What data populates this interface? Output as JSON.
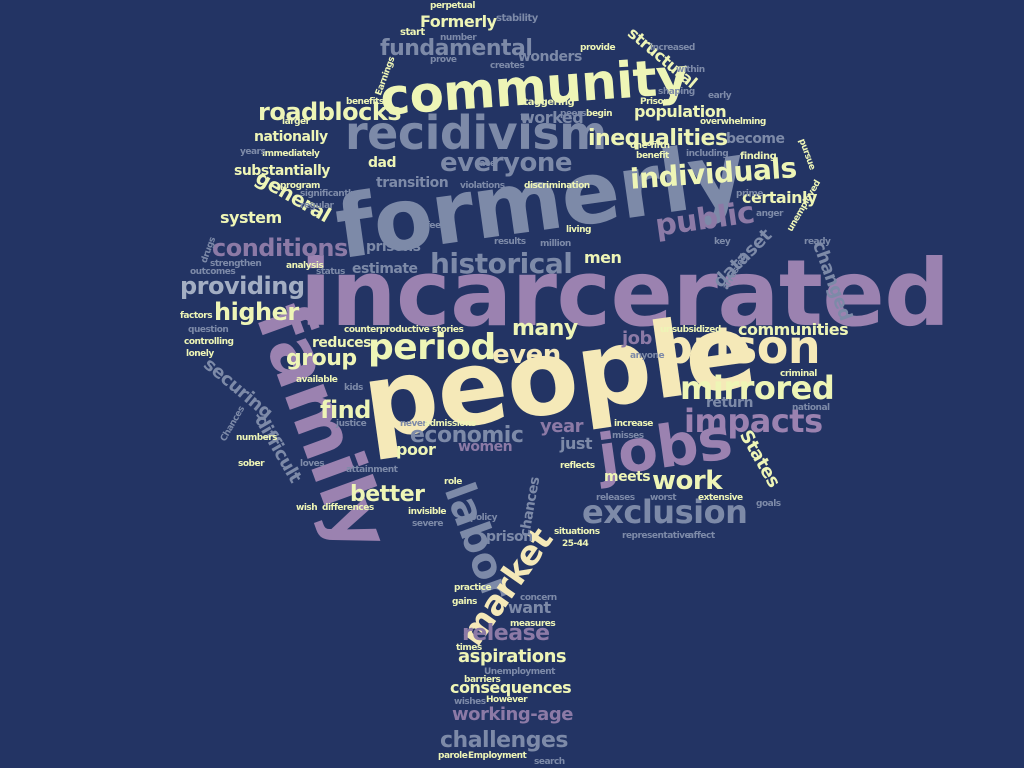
{
  "palette": {
    "background": "#233464",
    "cream": "#f5e9b8",
    "yellow": "#eef5b6",
    "slate": "#7d8aa8",
    "purple": "#8c7aa6",
    "mauve": "#9b82b0",
    "grey": "#a3aec3",
    "dim": "#66749a"
  },
  "words": {
    "incarcerated": "incarcerated",
    "people": "people",
    "formerly_big": "formerly",
    "family": "family",
    "community": "community",
    "recidivism": "recidivism",
    "prison_big": "prison",
    "jobs": "jobs",
    "labor": "labor",
    "market": "market",
    "period": "period",
    "mirrored": "mirrored",
    "impacts": "impacts",
    "exclusion": "exclusion",
    "work": "work",
    "even": "even",
    "many": "many",
    "individuals": "individuals",
    "historical": "historical",
    "public": "public",
    "everyone": "everyone",
    "inequalities": "inequalities",
    "fundamental": "fundamental",
    "roadblocks": "roadblocks",
    "conditions": "conditions",
    "providing": "providing",
    "higher": "higher",
    "group": "group",
    "find": "find",
    "economic": "economic",
    "better": "better",
    "challenges": "challenges",
    "release": "release",
    "aspirations": "aspirations",
    "consequences": "consequences",
    "working_age": "working-age",
    "communities": "communities",
    "certainly": "certainly",
    "changed": "changed",
    "dataset": "dataset",
    "States": "States",
    "difficult": "difficult",
    "securing": "securing",
    "general": "general",
    "system": "system",
    "substantially": "substantially",
    "nationally": "nationally",
    "population": "population",
    "structural": "structural",
    "worked": "worked",
    "become": "become",
    "Formerly_small": "Formerly",
    "wonders": "wonders",
    "estimate": "estimate",
    "prisons": "prisons",
    "transition": "transition",
    "dad": "dad",
    "men": "men",
    "year": "year",
    "just": "just",
    "women": "women",
    "poor": "poor",
    "job": "job",
    "return": "return",
    "meets": "meets",
    "reduces": "reduces",
    "want": "want",
    "chances": "chances",
    "prison_small": "prison",
    "start": "start",
    "stability": "stability",
    "perpetual": "perpetual",
    "number": "number",
    "provide": "provide",
    "increased": "increased",
    "prove": "prove",
    "creates": "creates",
    "within": "within",
    "Earnings": "Earnings",
    "shaping": "shaping",
    "early": "early",
    "benefits": "benefits",
    "staggering": "staggering",
    "Prison": "Prison",
    "larger": "larger",
    "peers": "peers",
    "begin": "begin",
    "overwhelming": "overwhelming",
    "one_fifth": "one-fifth",
    "benefit": "benefit",
    "including": "including",
    "finding": "finding",
    "pursue": "pursue",
    "immediately": "immediately",
    "years": "years",
    "face": "face",
    "violations": "violations",
    "discrimination": "discrimination",
    "program": "program",
    "significantly": "significantly",
    "regular": "regular",
    "prime": "prime",
    "anger": "anger",
    "unemployed": "unemployed",
    "ready": "ready",
    "feels": "feels",
    "results": "results",
    "million": "million",
    "living": "living",
    "key": "key",
    "drugs": "drugs",
    "strengthen": "strengthen",
    "outcomes": "outcomes",
    "analysis": "analysis",
    "status": "status",
    "arrested": "arrested",
    "factors": "factors",
    "question": "question",
    "controlling": "controlling",
    "lonely": "lonely",
    "counterproductive": "counterproductive",
    "stories": "stories",
    "unsubsidized": "unsubsidized",
    "anyone": "anyone",
    "criminal": "criminal",
    "available": "available",
    "kids": "kids",
    "national": "national",
    "Chances": "Chances",
    "numbers": "numbers",
    "sober": "sober",
    "justice": "justice",
    "never": "never",
    "admissions": "admissions",
    "increase": "increase",
    "misses": "misses",
    "loves": "loves",
    "attainment": "attainment",
    "reflects": "reflects",
    "role": "role",
    "releases": "releases",
    "worst": "worst",
    "extensive": "extensive",
    "goals": "goals",
    "wish": "wish",
    "differences": "differences",
    "invisible": "invisible",
    "severe": "severe",
    "policy": "policy",
    "situations": "situations",
    "age_range": "25-44",
    "representative": "representative",
    "affect": "affect",
    "practice": "practice",
    "gains": "gains",
    "concern": "concern",
    "measures": "measures",
    "times": "times",
    "Unemployment": "Unemployment",
    "barriers": "barriers",
    "However": "However",
    "wishes": "wishes",
    "parole": "parole",
    "Employment": "Employment",
    "search": "search"
  }
}
